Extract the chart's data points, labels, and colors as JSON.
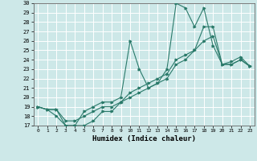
{
  "title": "",
  "xlabel": "Humidex (Indice chaleur)",
  "ylabel": "",
  "xlim": [
    -0.5,
    23.5
  ],
  "ylim": [
    17,
    30
  ],
  "yticks": [
    17,
    18,
    19,
    20,
    21,
    22,
    23,
    24,
    25,
    26,
    27,
    28,
    29,
    30
  ],
  "xticks": [
    0,
    1,
    2,
    3,
    4,
    5,
    6,
    7,
    8,
    9,
    10,
    11,
    12,
    13,
    14,
    15,
    16,
    17,
    18,
    19,
    20,
    21,
    22,
    23
  ],
  "bg_color": "#cde8e8",
  "grid_color": "#ffffff",
  "line_color": "#2a7a6a",
  "line1_x": [
    0,
    1,
    2,
    3,
    4,
    5,
    6,
    7,
    8,
    9,
    10,
    11,
    12,
    13,
    14,
    15,
    16,
    17,
    18,
    19,
    20,
    21,
    22,
    23
  ],
  "line1_y": [
    19.0,
    18.7,
    18.7,
    17.0,
    17.0,
    18.5,
    19.0,
    19.5,
    19.5,
    20.0,
    26.0,
    23.0,
    21.0,
    21.5,
    23.0,
    30.0,
    29.5,
    27.5,
    29.5,
    25.5,
    23.5,
    23.8,
    24.3,
    23.3
  ],
  "line2_x": [
    0,
    1,
    2,
    3,
    4,
    5,
    6,
    7,
    8,
    9,
    10,
    11,
    12,
    13,
    14,
    15,
    16,
    17,
    18,
    19,
    20,
    21,
    22,
    23
  ],
  "line2_y": [
    19.0,
    18.7,
    18.0,
    17.0,
    17.0,
    17.0,
    17.5,
    18.5,
    18.5,
    19.5,
    20.0,
    20.5,
    21.0,
    21.5,
    22.0,
    23.5,
    24.0,
    25.0,
    27.5,
    27.5,
    23.5,
    23.5,
    24.0,
    23.3
  ],
  "line3_x": [
    0,
    1,
    2,
    3,
    4,
    5,
    6,
    7,
    8,
    9,
    10,
    11,
    12,
    13,
    14,
    15,
    16,
    17,
    18,
    19,
    20,
    21,
    22,
    23
  ],
  "line3_y": [
    19.0,
    18.7,
    18.7,
    17.5,
    17.5,
    18.0,
    18.5,
    19.0,
    19.0,
    19.5,
    20.5,
    21.0,
    21.5,
    22.0,
    22.5,
    24.0,
    24.5,
    25.0,
    26.0,
    26.5,
    23.5,
    23.5,
    24.0,
    23.3
  ]
}
